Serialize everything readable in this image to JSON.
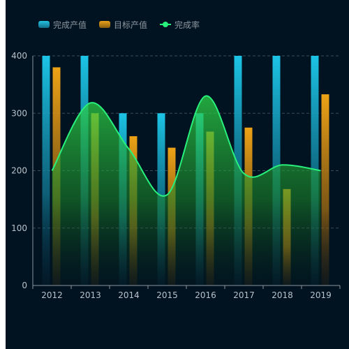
{
  "legend": {
    "series1": "完成产值",
    "series2": "目标产值",
    "series3": "完成率"
  },
  "chart_data": {
    "type": "bar",
    "categories": [
      "2012",
      "2013",
      "2014",
      "2015",
      "2016",
      "2017",
      "2018",
      "2019"
    ],
    "series": [
      {
        "name": "完成产值",
        "type": "bar",
        "values": [
          400,
          400,
          300,
          300,
          300,
          400,
          400,
          400
        ],
        "color": "#1ec0e0"
      },
      {
        "name": "目标产值",
        "type": "bar",
        "values": [
          380,
          300,
          260,
          240,
          268,
          275,
          168,
          333
        ],
        "color": "#e39a14"
      },
      {
        "name": "完成率",
        "type": "line",
        "smooth": true,
        "area": true,
        "values": [
          200,
          318,
          238,
          158,
          330,
          195,
          210,
          200
        ],
        "color": "#28f07c"
      }
    ],
    "ylim": [
      0,
      400
    ],
    "yticks": [
      0,
      100,
      200,
      300,
      400
    ],
    "grid": true,
    "legend_position": "top-left",
    "title": "",
    "xlabel": "",
    "ylabel": ""
  }
}
